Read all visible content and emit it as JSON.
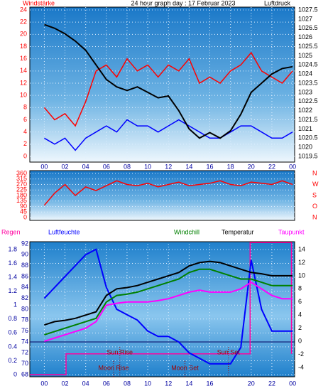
{
  "chart_data": [
    {
      "type": "line",
      "title": "24 hour graph day : 17 Februar 2023",
      "y_label": "Windstärke",
      "y2_label": "Luftdruck",
      "x": [
        0,
        1,
        2,
        3,
        4,
        5,
        6,
        7,
        8,
        9,
        10,
        11,
        12,
        13,
        14,
        15,
        16,
        17,
        18,
        19,
        20,
        21,
        22,
        23,
        24
      ],
      "xlim": [
        -1.4,
        24.2
      ],
      "xticks": [
        {
          "value": 0,
          "label": "00"
        },
        {
          "value": 2,
          "label": "02"
        },
        {
          "value": 4,
          "label": "04"
        },
        {
          "value": 6,
          "label": "06"
        },
        {
          "value": 8,
          "label": "08"
        },
        10,
        12,
        14,
        16,
        18,
        20,
        22,
        {
          "value": 24,
          "label": "00"
        }
      ],
      "ylim": [
        0,
        24
      ],
      "yticks": [
        0,
        2,
        4,
        6,
        8,
        10,
        12,
        14,
        16,
        18,
        20,
        22,
        24
      ],
      "y2lim": [
        1019.5,
        1027.5
      ],
      "y2ticks": [
        1019.5,
        1020,
        1020.5,
        1021,
        1021.5,
        1022,
        1022.5,
        1023,
        1023.5,
        1024,
        1024.5,
        1025,
        1025.5,
        1026,
        1026.5,
        1027,
        1027.5
      ],
      "grid": true,
      "series": [
        {
          "color": "#ff0000",
          "values": [
            8,
            6,
            7,
            5,
            9,
            14,
            15,
            13,
            16,
            14,
            15,
            13,
            15,
            14,
            16,
            12,
            13,
            12,
            14,
            15,
            17,
            14,
            13,
            12,
            14
          ]
        },
        {
          "color": "#0000ff",
          "values": [
            3,
            2,
            3,
            1,
            3,
            4,
            5,
            4,
            6,
            5,
            5,
            4,
            5,
            6,
            5,
            4,
            3,
            3,
            4,
            5,
            5,
            4,
            3,
            3,
            4
          ]
        },
        {
          "color": "#000000",
          "axis": "y2",
          "values": [
            1026.7,
            1026.5,
            1026.2,
            1025.8,
            1025.3,
            1024.5,
            1023.7,
            1023.3,
            1023.1,
            1023.3,
            1023.0,
            1022.7,
            1022.8,
            1022.0,
            1021.0,
            1020.5,
            1020.8,
            1020.5,
            1020.9,
            1021.8,
            1023.0,
            1023.5,
            1024.0,
            1024.3,
            1024.4
          ]
        }
      ]
    },
    {
      "type": "line",
      "x": [
        0,
        1,
        2,
        3,
        4,
        5,
        6,
        7,
        8,
        9,
        10,
        11,
        12,
        13,
        14,
        15,
        16,
        17,
        18,
        19,
        20,
        21,
        22,
        23,
        24
      ],
      "xlim": [
        -1.4,
        24.2
      ],
      "ylim": [
        0,
        360
      ],
      "yticks": [
        0,
        45,
        90,
        135,
        180,
        225,
        270,
        315,
        360
      ],
      "y2ticks": [
        {
          "value": 360,
          "label": "N"
        },
        {
          "value": 270,
          "label": "W"
        },
        {
          "value": 180,
          "label": "S"
        },
        {
          "value": 90,
          "label": "O"
        },
        {
          "value": 0,
          "label": "N"
        }
      ],
      "grid": true,
      "series": [
        {
          "color": "#ff0000",
          "values": [
            100,
            200,
            270,
            180,
            250,
            220,
            260,
            300,
            270,
            260,
            280,
            250,
            270,
            290,
            260,
            270,
            280,
            300,
            270,
            260,
            290,
            280,
            270,
            300,
            270
          ]
        }
      ]
    },
    {
      "type": "line",
      "x": [
        0,
        1,
        2,
        3,
        4,
        5,
        6,
        7,
        8,
        9,
        10,
        11,
        12,
        13,
        14,
        15,
        16,
        17,
        18,
        19,
        20,
        21,
        22,
        23,
        24
      ],
      "xlim": [
        -1.4,
        24.2
      ],
      "xticks": [
        {
          "value": 0,
          "label": "00"
        },
        {
          "value": 2,
          "label": "02"
        },
        {
          "value": 4,
          "label": "04"
        },
        {
          "value": 6,
          "label": "06"
        },
        {
          "value": 8,
          "label": "08"
        },
        10,
        12,
        14,
        16,
        20,
        22,
        {
          "value": 24,
          "label": "00"
        }
      ],
      "ylim": [
        0,
        1.8
      ],
      "yticks": [
        0,
        0.2,
        0.4,
        0.6,
        0.8,
        1,
        1.2,
        1.4,
        1.6,
        1.8
      ],
      "y2lim": [
        -4,
        14
      ],
      "y2ticks": [
        -4,
        -2,
        0,
        2,
        4,
        6,
        8,
        10,
        12,
        14
      ],
      "y3lim": [
        68,
        92
      ],
      "y3ticks": [
        68,
        70,
        72,
        74,
        76,
        78,
        80,
        82,
        84,
        86,
        88,
        90,
        92
      ],
      "grid": true,
      "series": [
        {
          "name": "Regen",
          "color": "#ff00a0",
          "x": [
            -1.4,
            2.1,
            2.1,
            19.9,
            19.9,
            23.9,
            23.9
          ],
          "values": [
            0,
            0,
            0.3,
            0.3,
            1.9,
            1.9,
            0.3
          ]
        },
        {
          "name": "Luftfeuchte",
          "color": "#0000ff",
          "axis": "y3",
          "values": [
            82,
            84,
            86,
            88,
            90,
            91,
            84,
            80,
            79,
            78,
            76,
            75,
            75,
            74,
            72,
            71,
            70,
            70,
            70,
            73,
            89,
            80,
            76,
            76,
            76
          ]
        },
        {
          "name": "Windchill",
          "color": "#008000",
          "axis": "y2",
          "values": [
            1,
            1.5,
            2,
            2.5,
            3,
            3.5,
            6,
            7,
            7.2,
            7.5,
            8,
            8.5,
            9,
            9.5,
            10.5,
            11,
            11,
            10.5,
            10,
            9.5,
            9.5,
            9,
            8.5,
            8.5,
            8.5
          ]
        },
        {
          "name": "Temperatur",
          "color": "#000000",
          "axis": "y2",
          "values": [
            2.5,
            3,
            3.2,
            3.5,
            4,
            4.5,
            7,
            8,
            8.2,
            8.5,
            9,
            9.5,
            10,
            10.5,
            11.5,
            12,
            12.2,
            12,
            11.5,
            11,
            10.5,
            10.3,
            10,
            10,
            10
          ]
        },
        {
          "name": "Taupunkt",
          "color": "#ff00ff",
          "axis": "y2",
          "values": [
            0,
            0.5,
            1,
            1.5,
            2,
            3,
            5.5,
            5.8,
            6,
            6,
            6,
            6.2,
            6.5,
            7,
            7.5,
            7.8,
            7.5,
            7.5,
            7.5,
            8,
            9,
            8,
            7,
            6.5,
            6.5
          ]
        }
      ],
      "annotations": [
        {
          "text": "Sun Rise",
          "x": 7.3
        },
        {
          "text": "Sun Set",
          "x": 17.8
        },
        {
          "text": "Moon Rise",
          "x": 6.7
        },
        {
          "text": "Moon Set",
          "x": 13.6
        }
      ]
    }
  ]
}
